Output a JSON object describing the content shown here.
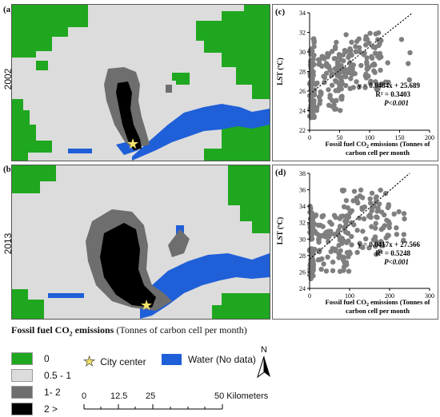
{
  "panels": {
    "a": {
      "letter": "(a)",
      "year": "2002"
    },
    "b": {
      "letter": "(b)",
      "year": "2013"
    },
    "c": {
      "letter": "(c)"
    },
    "d": {
      "letter": "(d)"
    }
  },
  "legend": {
    "title_bold": "Fossil fuel CO",
    "title_sub": "2",
    "title_bold2": " emissions",
    "title_rest": " (Tonnes of carbon cell per month)",
    "classes": [
      {
        "label": "0",
        "color": "#1fa71f"
      },
      {
        "label": "0.5 - 1",
        "color": "#dcdcdc"
      },
      {
        "label": "1- 2",
        "color": "#6e6e6e"
      },
      {
        "label": "2 >",
        "color": "#000000"
      }
    ],
    "city_center": "City center",
    "water": "Water (No data)",
    "water_color": "#1f5fd8",
    "north": "N"
  },
  "scale": {
    "ticks": [
      "0",
      "12.5",
      "25",
      "50 Kilometers"
    ]
  },
  "chart_data": [
    {
      "type": "scatter",
      "panel": "(c)",
      "xlabel_line1": "Fossil fuel CO",
      "xlabel_sub": "2",
      "xlabel_line1b": " emissions (Tonnes of",
      "xlabel_line2": "carbon cell per month",
      "ylabel": "LST (ºC)",
      "xlim": [
        0,
        200
      ],
      "ylim": [
        22,
        34
      ],
      "xticks": [
        0,
        50,
        100,
        150,
        200
      ],
      "yticks": [
        22,
        24,
        26,
        28,
        30,
        32,
        34
      ],
      "equation": "y = 0.0484x + 25.689",
      "r2": "R² = 0.3403",
      "p": "P<0.001",
      "fit": {
        "slope": 0.0484,
        "intercept": 25.689
      },
      "point_color": "#7f7f7f",
      "clusters": [
        {
          "x": [
            0,
            8
          ],
          "y": [
            23,
            31.5
          ],
          "n": 60
        },
        {
          "x": [
            0,
            60
          ],
          "y": [
            24,
            30.5
          ],
          "n": 90
        },
        {
          "x": [
            40,
            120
          ],
          "y": [
            26,
            32
          ],
          "n": 80
        },
        {
          "x": [
            60,
            170
          ],
          "y": [
            26,
            31.5
          ],
          "n": 30
        }
      ]
    },
    {
      "type": "scatter",
      "panel": "(d)",
      "xlabel_line1": "Fossil fuel CO",
      "xlabel_sub": "2",
      "xlabel_line1b": " emissions (Tonnes of",
      "xlabel_line2": "carbon cell per month",
      "ylabel": "LST (ºC)",
      "xlim": [
        0,
        300
      ],
      "ylim": [
        24,
        38
      ],
      "xticks": [
        0,
        100,
        200,
        300
      ],
      "yticks": [
        24,
        26,
        28,
        30,
        32,
        34,
        36,
        38
      ],
      "equation": "y = 0.0417x + 27.566",
      "r2": "R² = 0.5248",
      "p": "P<0.001",
      "fit": {
        "slope": 0.0417,
        "intercept": 27.566
      },
      "point_color": "#7f7f7f",
      "clusters": [
        {
          "x": [
            0,
            10
          ],
          "y": [
            25,
            34
          ],
          "n": 60
        },
        {
          "x": [
            0,
            100
          ],
          "y": [
            26,
            33
          ],
          "n": 100
        },
        {
          "x": [
            80,
            200
          ],
          "y": [
            28,
            36
          ],
          "n": 80
        },
        {
          "x": [
            150,
            240
          ],
          "y": [
            29,
            34
          ],
          "n": 20
        }
      ]
    }
  ]
}
